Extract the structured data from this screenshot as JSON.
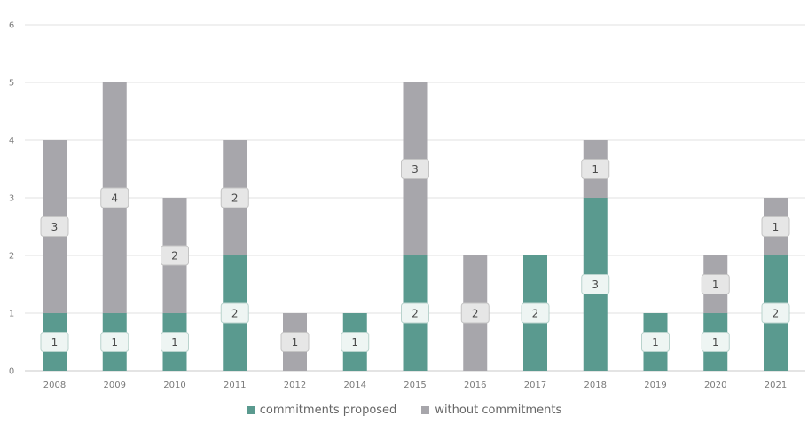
{
  "chart_data": {
    "type": "bar",
    "stacked": true,
    "categories": [
      "2008",
      "2009",
      "2010",
      "2011",
      "2012",
      "2014",
      "2015",
      "2016",
      "2017",
      "2018",
      "2019",
      "2020",
      "2021"
    ],
    "series": [
      {
        "name": "commitments proposed",
        "color": "#5a9a8f",
        "values": [
          1,
          1,
          1,
          2,
          0,
          1,
          2,
          0,
          2,
          3,
          1,
          1,
          2
        ]
      },
      {
        "name": "without commitments",
        "color": "#a7a6ab",
        "values": [
          3,
          4,
          2,
          2,
          1,
          0,
          3,
          2,
          0,
          1,
          0,
          1,
          1
        ]
      }
    ],
    "ylim": [
      0,
      6
    ],
    "yticks": [
      0,
      1,
      2,
      3,
      4,
      5,
      6
    ],
    "grid": true,
    "legend_position": "bottom"
  }
}
